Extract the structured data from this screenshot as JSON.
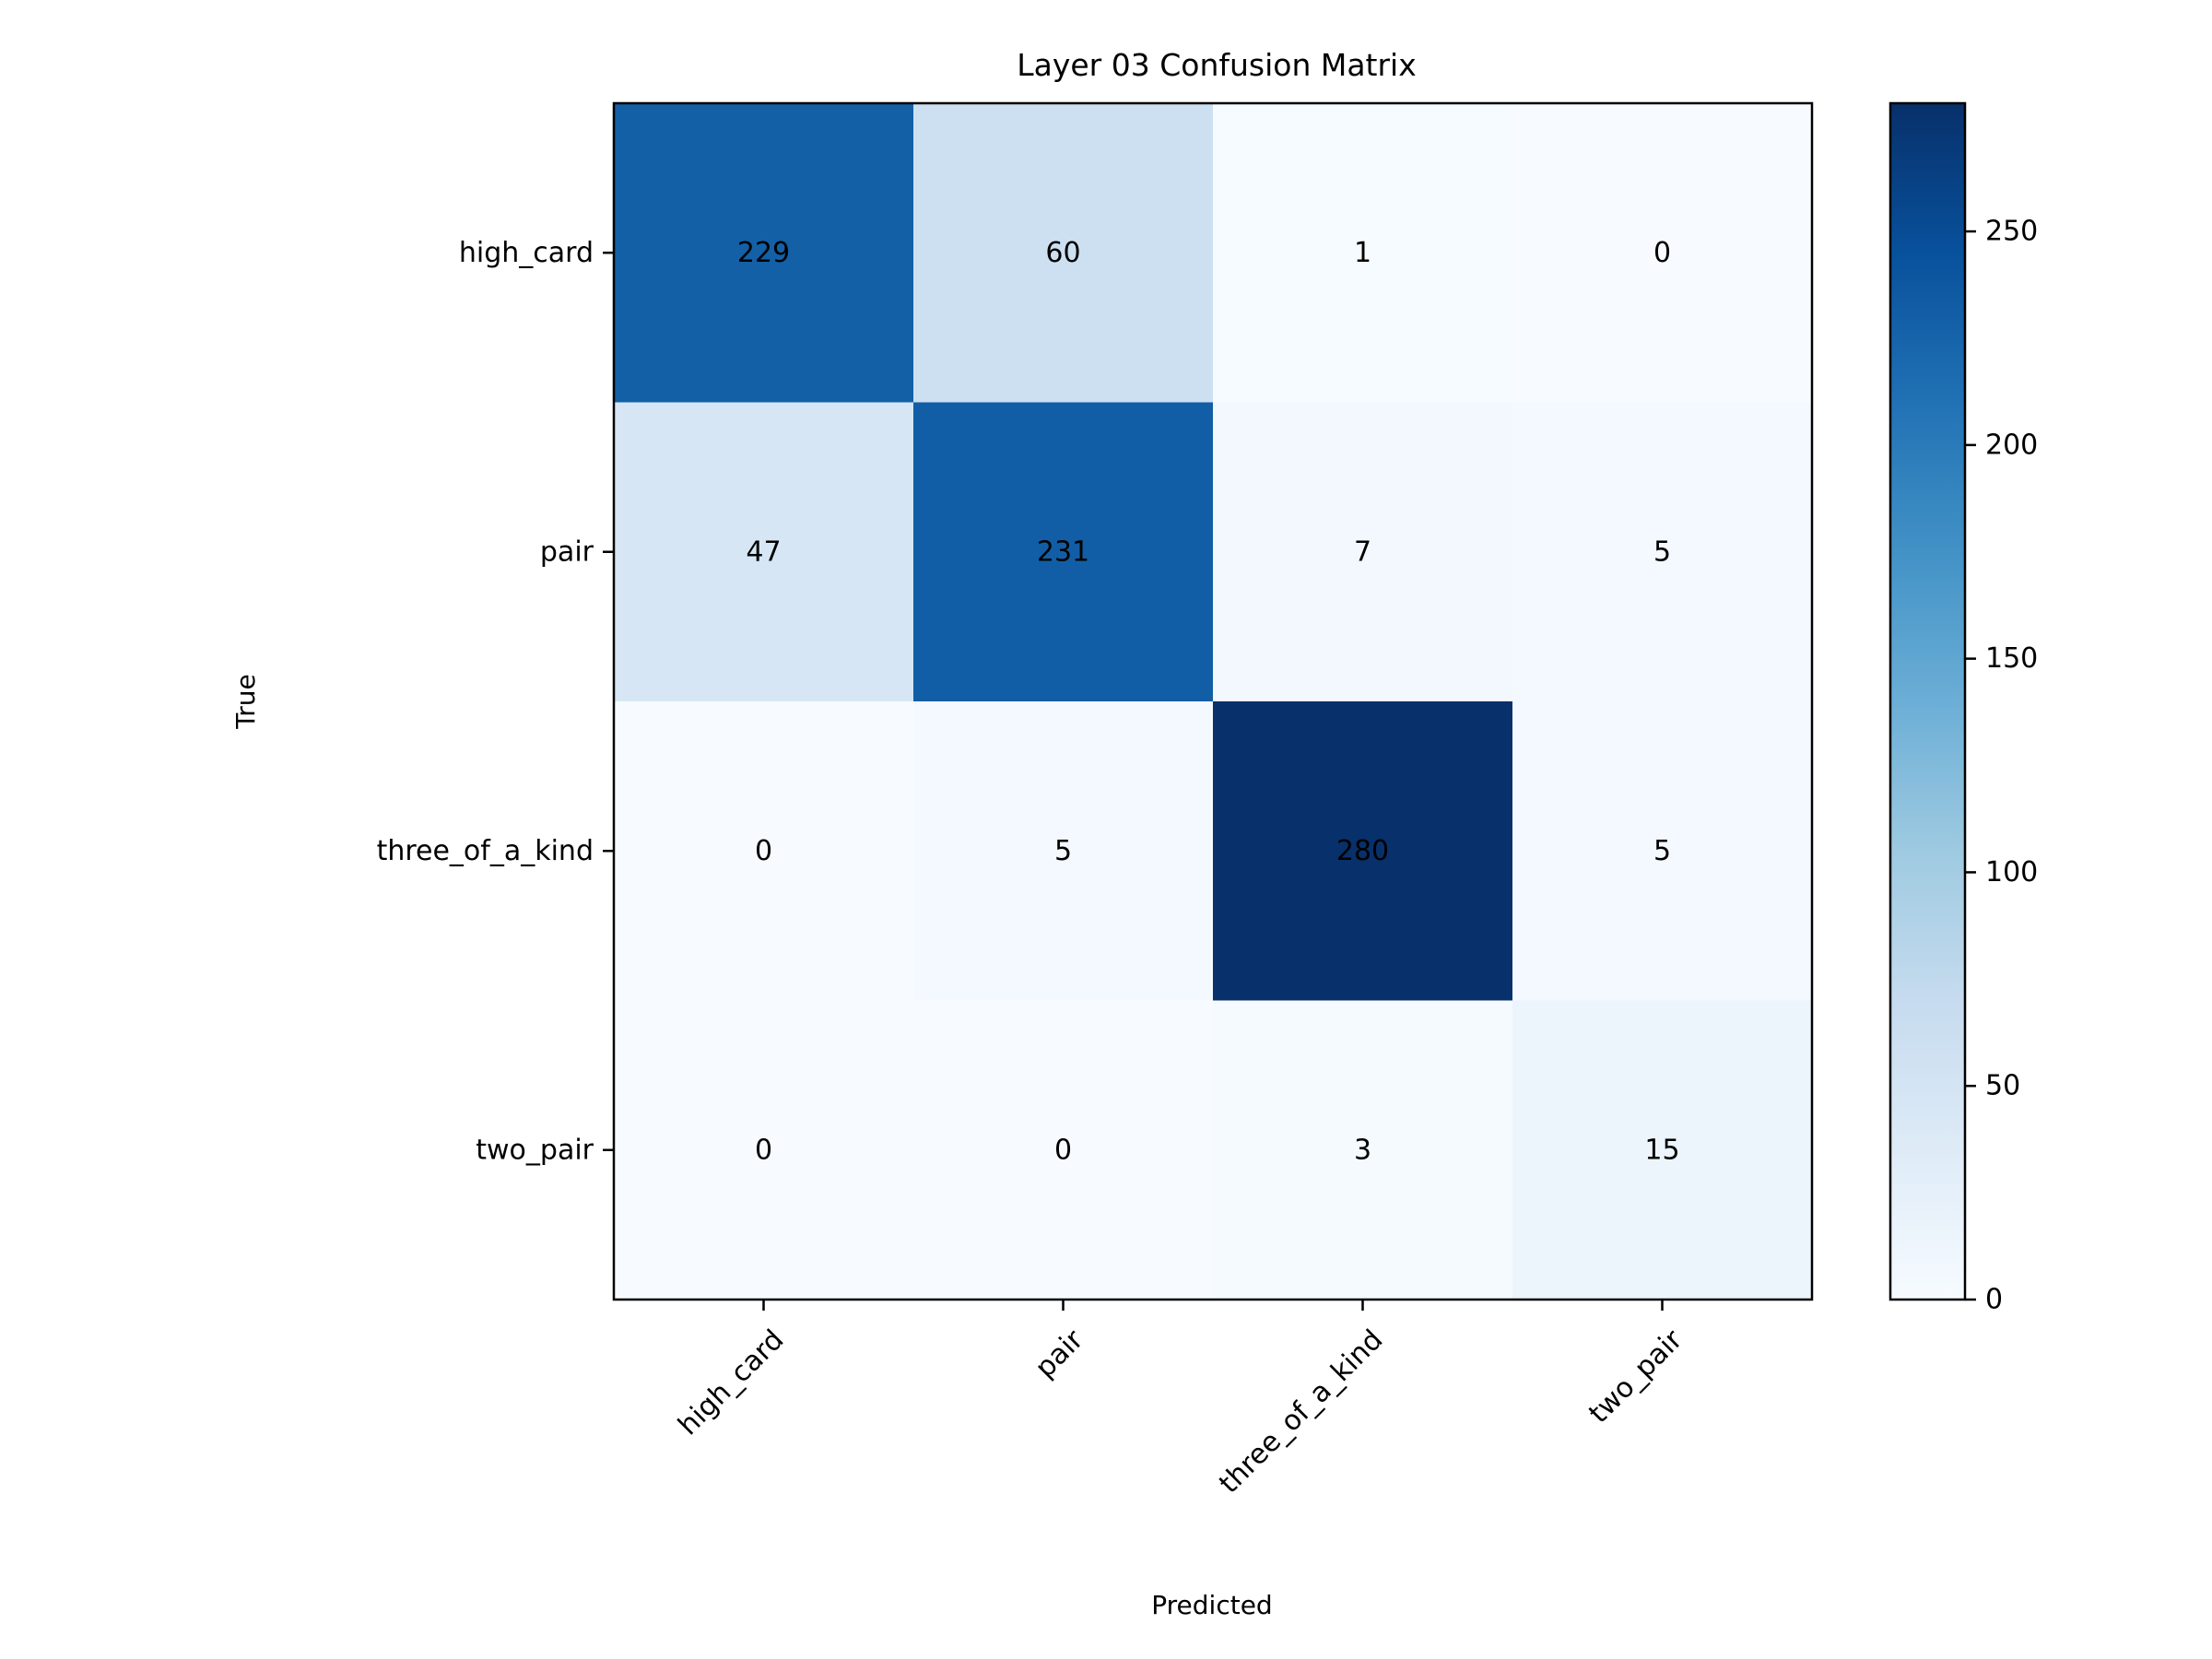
{
  "chart_data": {
    "type": "heatmap",
    "title": "Layer 03 Confusion Matrix",
    "xlabel": "Predicted",
    "ylabel": "True",
    "x_categories": [
      "high_card",
      "pair",
      "three_of_a_kind",
      "two_pair"
    ],
    "y_categories": [
      "high_card",
      "pair",
      "three_of_a_kind",
      "two_pair"
    ],
    "values": [
      [
        229,
        60,
        1,
        0
      ],
      [
        47,
        231,
        7,
        5
      ],
      [
        0,
        5,
        280,
        5
      ],
      [
        0,
        0,
        3,
        15
      ]
    ],
    "colormap": "Blues",
    "colorbar": {
      "min": 0,
      "max": 280,
      "ticks": [
        0,
        50,
        100,
        150,
        200,
        250
      ]
    }
  }
}
